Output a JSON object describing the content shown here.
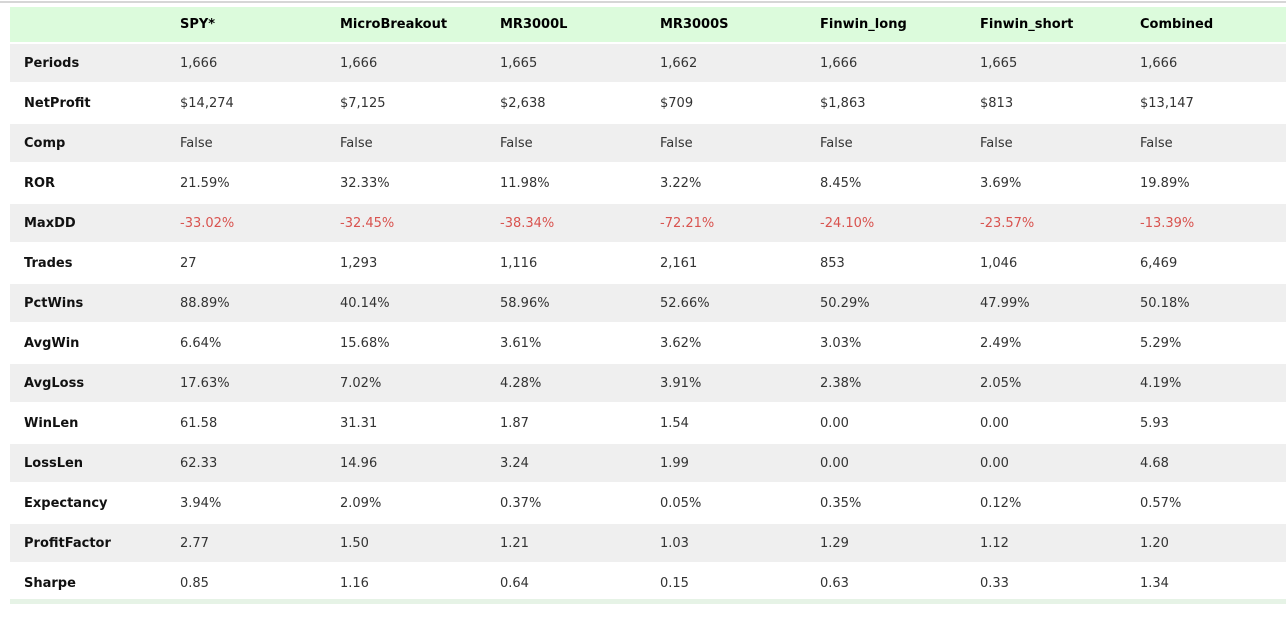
{
  "chart_data": {
    "type": "table",
    "columns": [
      "",
      "SPY*",
      "MicroBreakout",
      "MR3000L",
      "MR3000S",
      "Finwin_long",
      "Finwin_short",
      "Combined"
    ],
    "rows": [
      {
        "label": "Periods",
        "values": [
          "1,666",
          "1,666",
          "1,665",
          "1,662",
          "1,666",
          "1,665",
          "1,666"
        ],
        "negative": false
      },
      {
        "label": "NetProfit",
        "values": [
          "$14,274",
          "$7,125",
          "$2,638",
          "$709",
          "$1,863",
          "$813",
          "$13,147"
        ],
        "negative": false
      },
      {
        "label": "Comp",
        "values": [
          "False",
          "False",
          "False",
          "False",
          "False",
          "False",
          "False"
        ],
        "negative": false
      },
      {
        "label": "ROR",
        "values": [
          "21.59%",
          "32.33%",
          "11.98%",
          "3.22%",
          "8.45%",
          "3.69%",
          "19.89%"
        ],
        "negative": false
      },
      {
        "label": "MaxDD",
        "values": [
          "-33.02%",
          "-32.45%",
          "-38.34%",
          "-72.21%",
          "-24.10%",
          "-23.57%",
          "-13.39%"
        ],
        "negative": true
      },
      {
        "label": "Trades",
        "values": [
          "27",
          "1,293",
          "1,116",
          "2,161",
          "853",
          "1,046",
          "6,469"
        ],
        "negative": false
      },
      {
        "label": "PctWins",
        "values": [
          "88.89%",
          "40.14%",
          "58.96%",
          "52.66%",
          "50.29%",
          "47.99%",
          "50.18%"
        ],
        "negative": false
      },
      {
        "label": "AvgWin",
        "values": [
          "6.64%",
          "15.68%",
          "3.61%",
          "3.62%",
          "3.03%",
          "2.49%",
          "5.29%"
        ],
        "negative": false
      },
      {
        "label": "AvgLoss",
        "values": [
          "17.63%",
          "7.02%",
          "4.28%",
          "3.91%",
          "2.38%",
          "2.05%",
          "4.19%"
        ],
        "negative": false
      },
      {
        "label": "WinLen",
        "values": [
          "61.58",
          "31.31",
          "1.87",
          "1.54",
          "0.00",
          "0.00",
          "5.93"
        ],
        "negative": false
      },
      {
        "label": "LossLen",
        "values": [
          "62.33",
          "14.96",
          "3.24",
          "1.99",
          "0.00",
          "0.00",
          "4.68"
        ],
        "negative": false
      },
      {
        "label": "Expectancy",
        "values": [
          "3.94%",
          "2.09%",
          "0.37%",
          "0.05%",
          "0.35%",
          "0.12%",
          "0.57%"
        ],
        "negative": false
      },
      {
        "label": "ProfitFactor",
        "values": [
          "2.77",
          "1.50",
          "1.21",
          "1.03",
          "1.29",
          "1.12",
          "1.20"
        ],
        "negative": false
      },
      {
        "label": "Sharpe",
        "values": [
          "0.85",
          "1.16",
          "0.64",
          "0.15",
          "0.63",
          "0.33",
          "1.34"
        ],
        "negative": false
      }
    ],
    "layout": {
      "striped_rows": true,
      "header_position": "top",
      "table_cut_off_right": true,
      "next_table_header_sliver_bottom": true
    }
  },
  "colors": {
    "header_bg": "#dcfbdc",
    "stripe_bg": "#efefef",
    "negative_text": "#d9534f",
    "body_text": "#333333",
    "label_text": "#111111"
  }
}
